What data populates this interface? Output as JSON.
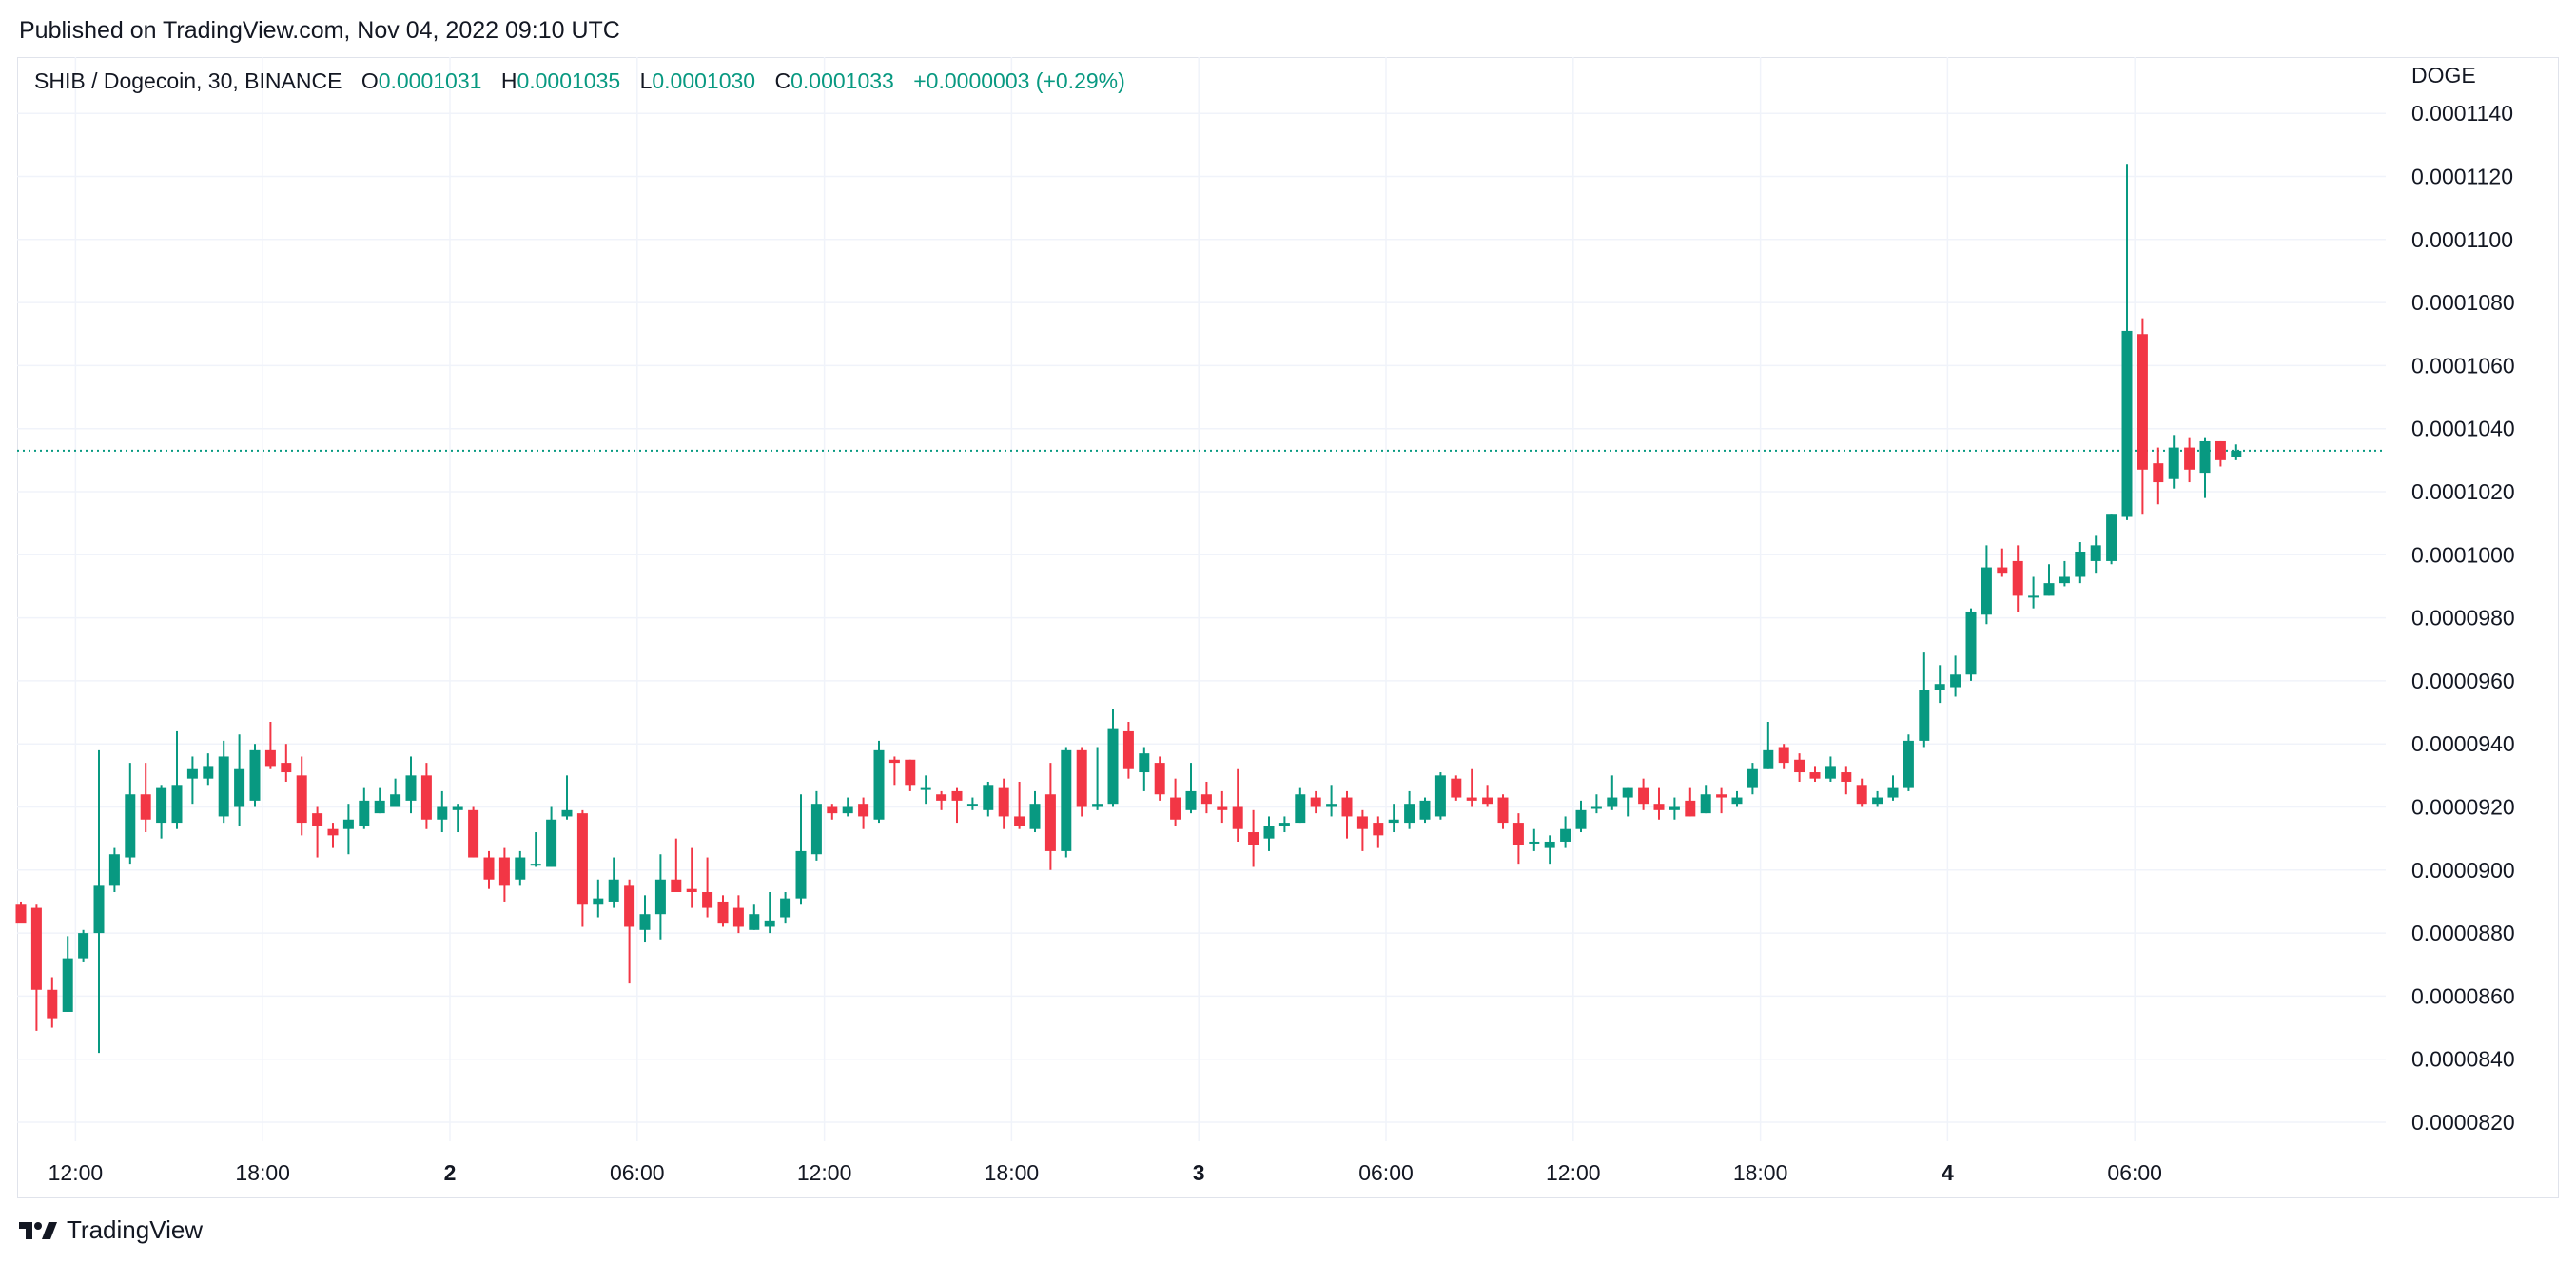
{
  "published": "Published on TradingView.com, Nov 04, 2022 09:10 UTC",
  "header": {
    "symbol": "SHIB / Dogecoin, 30, BINANCE",
    "o_label": "O",
    "o_value": "0.0001031",
    "h_label": "H",
    "h_value": "0.0001035",
    "l_label": "L",
    "l_value": "0.0001030",
    "c_label": "C",
    "c_value": "0.0001033",
    "change": "+0.0000003 (+0.29%)"
  },
  "currency": "DOGE",
  "brand": "TradingView",
  "colors": {
    "up": "#089981",
    "down": "#f23645",
    "grid": "#f0f3fa",
    "price_line": "#089981"
  },
  "chart_data": {
    "type": "candlestick",
    "title": "SHIB / Dogecoin, 30, BINANCE",
    "ylim": [
      8.14e-05,
      0.0001147
    ],
    "y_ticks": [
      "0.0001140",
      "0.0001120",
      "0.0001100",
      "0.0001080",
      "0.0001060",
      "0.0001040",
      "0.0001020",
      "0.0001000",
      "0.0000980",
      "0.0000960",
      "0.0000940",
      "0.0000920",
      "0.0000900",
      "0.0000880",
      "0.0000860",
      "0.0000840",
      "0.0000820"
    ],
    "x_ticks": [
      {
        "label": "12:00",
        "index": 3.5,
        "bold": false
      },
      {
        "label": "18:00",
        "index": 15.5,
        "bold": false
      },
      {
        "label": "2",
        "index": 27.5,
        "bold": true
      },
      {
        "label": "06:00",
        "index": 39.5,
        "bold": false
      },
      {
        "label": "12:00",
        "index": 51.5,
        "bold": false
      },
      {
        "label": "18:00",
        "index": 63.5,
        "bold": false
      },
      {
        "label": "3",
        "index": 75.5,
        "bold": true
      },
      {
        "label": "06:00",
        "index": 87.5,
        "bold": false
      },
      {
        "label": "12:00",
        "index": 99.5,
        "bold": false
      },
      {
        "label": "18:00",
        "index": 111.5,
        "bold": false
      },
      {
        "label": "4",
        "index": 123.5,
        "bold": true
      },
      {
        "label": "06:00",
        "index": 135.5,
        "bold": false
      }
    ],
    "last_price": 0.0001033,
    "candles": [
      {
        "o": 8.89e-05,
        "h": 8.9e-05,
        "l": 8.84e-05,
        "c": 8.83e-05
      },
      {
        "o": 8.88e-05,
        "h": 8.89e-05,
        "l": 8.49e-05,
        "c": 8.62e-05
      },
      {
        "o": 8.62e-05,
        "h": 8.66e-05,
        "l": 8.5e-05,
        "c": 8.53e-05
      },
      {
        "o": 8.55e-05,
        "h": 8.79e-05,
        "l": 8.55e-05,
        "c": 8.72e-05
      },
      {
        "o": 8.72e-05,
        "h": 8.81e-05,
        "l": 8.71e-05,
        "c": 8.8e-05
      },
      {
        "o": 8.8e-05,
        "h": 9.38e-05,
        "l": 8.42e-05,
        "c": 8.95e-05
      },
      {
        "o": 8.95e-05,
        "h": 9.07e-05,
        "l": 8.93e-05,
        "c": 9.05e-05
      },
      {
        "o": 9.04e-05,
        "h": 9.34e-05,
        "l": 9.02e-05,
        "c": 9.24e-05
      },
      {
        "o": 9.24e-05,
        "h": 9.34e-05,
        "l": 9.12e-05,
        "c": 9.16e-05
      },
      {
        "o": 9.15e-05,
        "h": 9.27e-05,
        "l": 9.1e-05,
        "c": 9.26e-05
      },
      {
        "o": 9.15e-05,
        "h": 9.44e-05,
        "l": 9.13e-05,
        "c": 9.27e-05
      },
      {
        "o": 9.29e-05,
        "h": 9.36e-05,
        "l": 9.21e-05,
        "c": 9.32e-05
      },
      {
        "o": 9.29e-05,
        "h": 9.37e-05,
        "l": 9.27e-05,
        "c": 9.33e-05
      },
      {
        "o": 9.17e-05,
        "h": 9.41e-05,
        "l": 9.15e-05,
        "c": 9.36e-05
      },
      {
        "o": 9.2e-05,
        "h": 9.43e-05,
        "l": 9.14e-05,
        "c": 9.32e-05
      },
      {
        "o": 9.22e-05,
        "h": 9.4e-05,
        "l": 9.2e-05,
        "c": 9.38e-05
      },
      {
        "o": 9.38e-05,
        "h": 9.47e-05,
        "l": 9.32e-05,
        "c": 9.33e-05
      },
      {
        "o": 9.34e-05,
        "h": 9.4e-05,
        "l": 9.28e-05,
        "c": 9.31e-05
      },
      {
        "o": 9.3e-05,
        "h": 9.36e-05,
        "l": 9.11e-05,
        "c": 9.15e-05
      },
      {
        "o": 9.18e-05,
        "h": 9.2e-05,
        "l": 9.04e-05,
        "c": 9.14e-05
      },
      {
        "o": 9.13e-05,
        "h": 9.15e-05,
        "l": 9.07e-05,
        "c": 9.11e-05
      },
      {
        "o": 9.13e-05,
        "h": 9.21e-05,
        "l": 9.05e-05,
        "c": 9.16e-05
      },
      {
        "o": 9.14e-05,
        "h": 9.26e-05,
        "l": 9.13e-05,
        "c": 9.22e-05
      },
      {
        "o": 9.18e-05,
        "h": 9.26e-05,
        "l": 9.18e-05,
        "c": 9.22e-05
      },
      {
        "o": 9.2e-05,
        "h": 9.29e-05,
        "l": 9.2e-05,
        "c": 9.24e-05
      },
      {
        "o": 9.22e-05,
        "h": 9.36e-05,
        "l": 9.18e-05,
        "c": 9.3e-05
      },
      {
        "o": 9.3e-05,
        "h": 9.34e-05,
        "l": 9.13e-05,
        "c": 9.16e-05
      },
      {
        "o": 9.16e-05,
        "h": 9.25e-05,
        "l": 9.12e-05,
        "c": 9.2e-05
      },
      {
        "o": 9.19e-05,
        "h": 9.21e-05,
        "l": 9.12e-05,
        "c": 9.2e-05
      },
      {
        "o": 9.19e-05,
        "h": 9.2e-05,
        "l": 9.04e-05,
        "c": 9.04e-05
      },
      {
        "o": 9.04e-05,
        "h": 9.06e-05,
        "l": 8.94e-05,
        "c": 8.97e-05
      },
      {
        "o": 9.04e-05,
        "h": 9.07e-05,
        "l": 8.9e-05,
        "c": 8.95e-05
      },
      {
        "o": 8.97e-05,
        "h": 9.06e-05,
        "l": 8.95e-05,
        "c": 9.04e-05
      },
      {
        "o": 9.02e-05,
        "h": 9.12e-05,
        "l": 9.01e-05,
        "c": 9.02e-05
      },
      {
        "o": 9.01e-05,
        "h": 9.2e-05,
        "l": 9.01e-05,
        "c": 9.16e-05
      },
      {
        "o": 9.17e-05,
        "h": 9.3e-05,
        "l": 9.16e-05,
        "c": 9.19e-05
      },
      {
        "o": 9.18e-05,
        "h": 9.19e-05,
        "l": 8.82e-05,
        "c": 8.89e-05
      },
      {
        "o": 8.89e-05,
        "h": 8.97e-05,
        "l": 8.85e-05,
        "c": 8.91e-05
      },
      {
        "o": 8.9e-05,
        "h": 9.04e-05,
        "l": 8.88e-05,
        "c": 8.97e-05
      },
      {
        "o": 8.95e-05,
        "h": 8.97e-05,
        "l": 8.64e-05,
        "c": 8.82e-05
      },
      {
        "o": 8.81e-05,
        "h": 8.92e-05,
        "l": 8.77e-05,
        "c": 8.86e-05
      },
      {
        "o": 8.86e-05,
        "h": 9.05e-05,
        "l": 8.78e-05,
        "c": 8.97e-05
      },
      {
        "o": 8.97e-05,
        "h": 9.1e-05,
        "l": 8.93e-05,
        "c": 8.93e-05
      },
      {
        "o": 8.94e-05,
        "h": 9.07e-05,
        "l": 8.88e-05,
        "c": 8.93e-05
      },
      {
        "o": 8.93e-05,
        "h": 9.04e-05,
        "l": 8.85e-05,
        "c": 8.88e-05
      },
      {
        "o": 8.9e-05,
        "h": 8.92e-05,
        "l": 8.82e-05,
        "c": 8.83e-05
      },
      {
        "o": 8.88e-05,
        "h": 8.92e-05,
        "l": 8.8e-05,
        "c": 8.82e-05
      },
      {
        "o": 8.81e-05,
        "h": 8.89e-05,
        "l": 8.81e-05,
        "c": 8.86e-05
      },
      {
        "o": 8.82e-05,
        "h": 8.93e-05,
        "l": 8.8e-05,
        "c": 8.84e-05
      },
      {
        "o": 8.85e-05,
        "h": 8.93e-05,
        "l": 8.83e-05,
        "c": 8.91e-05
      },
      {
        "o": 8.91e-05,
        "h": 9.24e-05,
        "l": 8.89e-05,
        "c": 9.06e-05
      },
      {
        "o": 9.05e-05,
        "h": 9.25e-05,
        "l": 9.03e-05,
        "c": 9.21e-05
      },
      {
        "o": 9.2e-05,
        "h": 9.21e-05,
        "l": 9.16e-05,
        "c": 9.18e-05
      },
      {
        "o": 9.18e-05,
        "h": 9.23e-05,
        "l": 9.17e-05,
        "c": 9.2e-05
      },
      {
        "o": 9.21e-05,
        "h": 9.23e-05,
        "l": 9.13e-05,
        "c": 9.17e-05
      },
      {
        "o": 9.16e-05,
        "h": 9.41e-05,
        "l": 9.15e-05,
        "c": 9.38e-05
      },
      {
        "o": 9.35e-05,
        "h": 9.36e-05,
        "l": 9.27e-05,
        "c": 9.34e-05
      },
      {
        "o": 9.35e-05,
        "h": 9.35e-05,
        "l": 9.25e-05,
        "c": 9.27e-05
      },
      {
        "o": 9.26e-05,
        "h": 9.3e-05,
        "l": 9.21e-05,
        "c": 9.26e-05
      },
      {
        "o": 9.24e-05,
        "h": 9.25e-05,
        "l": 9.19e-05,
        "c": 9.22e-05
      },
      {
        "o": 9.25e-05,
        "h": 9.26e-05,
        "l": 9.15e-05,
        "c": 9.22e-05
      },
      {
        "o": 9.21e-05,
        "h": 9.23e-05,
        "l": 9.19e-05,
        "c": 9.21e-05
      },
      {
        "o": 9.19e-05,
        "h": 9.28e-05,
        "l": 9.17e-05,
        "c": 9.27e-05
      },
      {
        "o": 9.26e-05,
        "h": 9.29e-05,
        "l": 9.13e-05,
        "c": 9.17e-05
      },
      {
        "o": 9.17e-05,
        "h": 9.28e-05,
        "l": 9.13e-05,
        "c": 9.14e-05
      },
      {
        "o": 9.13e-05,
        "h": 9.25e-05,
        "l": 9.12e-05,
        "c": 9.21e-05
      },
      {
        "o": 9.24e-05,
        "h": 9.34e-05,
        "l": 9e-05,
        "c": 9.06e-05
      },
      {
        "o": 9.06e-05,
        "h": 9.39e-05,
        "l": 9.04e-05,
        "c": 9.38e-05
      },
      {
        "o": 9.38e-05,
        "h": 9.39e-05,
        "l": 9.17e-05,
        "c": 9.2e-05
      },
      {
        "o": 9.2e-05,
        "h": 9.39e-05,
        "l": 9.19e-05,
        "c": 9.21e-05
      },
      {
        "o": 9.21e-05,
        "h": 9.51e-05,
        "l": 9.2e-05,
        "c": 9.45e-05
      },
      {
        "o": 9.44e-05,
        "h": 9.47e-05,
        "l": 9.29e-05,
        "c": 9.32e-05
      },
      {
        "o": 9.31e-05,
        "h": 9.39e-05,
        "l": 9.25e-05,
        "c": 9.37e-05
      },
      {
        "o": 9.34e-05,
        "h": 9.36e-05,
        "l": 9.22e-05,
        "c": 9.24e-05
      },
      {
        "o": 9.23e-05,
        "h": 9.29e-05,
        "l": 9.14e-05,
        "c": 9.16e-05
      },
      {
        "o": 9.19e-05,
        "h": 9.34e-05,
        "l": 9.18e-05,
        "c": 9.25e-05
      },
      {
        "o": 9.24e-05,
        "h": 9.28e-05,
        "l": 9.18e-05,
        "c": 9.21e-05
      },
      {
        "o": 9.2e-05,
        "h": 9.25e-05,
        "l": 9.15e-05,
        "c": 9.19e-05
      },
      {
        "o": 9.2e-05,
        "h": 9.32e-05,
        "l": 9.09e-05,
        "c": 9.13e-05
      },
      {
        "o": 9.12e-05,
        "h": 9.19e-05,
        "l": 9.01e-05,
        "c": 9.08e-05
      },
      {
        "o": 9.1e-05,
        "h": 9.17e-05,
        "l": 9.06e-05,
        "c": 9.14e-05
      },
      {
        "o": 9.14e-05,
        "h": 9.17e-05,
        "l": 9.12e-05,
        "c": 9.15e-05
      },
      {
        "o": 9.15e-05,
        "h": 9.26e-05,
        "l": 9.15e-05,
        "c": 9.24e-05
      },
      {
        "o": 9.23e-05,
        "h": 9.25e-05,
        "l": 9.18e-05,
        "c": 9.2e-05
      },
      {
        "o": 9.2e-05,
        "h": 9.27e-05,
        "l": 9.17e-05,
        "c": 9.21e-05
      },
      {
        "o": 9.23e-05,
        "h": 9.25e-05,
        "l": 9.1e-05,
        "c": 9.17e-05
      },
      {
        "o": 9.17e-05,
        "h": 9.19e-05,
        "l": 9.06e-05,
        "c": 9.13e-05
      },
      {
        "o": 9.15e-05,
        "h": 9.17e-05,
        "l": 9.07e-05,
        "c": 9.11e-05
      },
      {
        "o": 9.15e-05,
        "h": 9.21e-05,
        "l": 9.12e-05,
        "c": 9.16e-05
      },
      {
        "o": 9.15e-05,
        "h": 9.25e-05,
        "l": 9.13e-05,
        "c": 9.21e-05
      },
      {
        "o": 9.16e-05,
        "h": 9.23e-05,
        "l": 9.15e-05,
        "c": 9.22e-05
      },
      {
        "o": 9.17e-05,
        "h": 9.31e-05,
        "l": 9.16e-05,
        "c": 9.3e-05
      },
      {
        "o": 9.29e-05,
        "h": 9.3e-05,
        "l": 9.22e-05,
        "c": 9.23e-05
      },
      {
        "o": 9.23e-05,
        "h": 9.32e-05,
        "l": 9.2e-05,
        "c": 9.22e-05
      },
      {
        "o": 9.23e-05,
        "h": 9.27e-05,
        "l": 9.2e-05,
        "c": 9.21e-05
      },
      {
        "o": 9.23e-05,
        "h": 9.24e-05,
        "l": 9.13e-05,
        "c": 9.15e-05
      },
      {
        "o": 9.15e-05,
        "h": 9.18e-05,
        "l": 9.02e-05,
        "c": 9.08e-05
      },
      {
        "o": 9.09e-05,
        "h": 9.13e-05,
        "l": 9.06e-05,
        "c": 9.09e-05
      },
      {
        "o": 9.07e-05,
        "h": 9.11e-05,
        "l": 9.02e-05,
        "c": 9.09e-05
      },
      {
        "o": 9.09e-05,
        "h": 9.17e-05,
        "l": 9.07e-05,
        "c": 9.13e-05
      },
      {
        "o": 9.13e-05,
        "h": 9.22e-05,
        "l": 9.12e-05,
        "c": 9.19e-05
      },
      {
        "o": 9.2e-05,
        "h": 9.24e-05,
        "l": 9.18e-05,
        "c": 9.2e-05
      },
      {
        "o": 9.2e-05,
        "h": 9.3e-05,
        "l": 9.19e-05,
        "c": 9.23e-05
      },
      {
        "o": 9.23e-05,
        "h": 9.26e-05,
        "l": 9.17e-05,
        "c": 9.26e-05
      },
      {
        "o": 9.26e-05,
        "h": 9.29e-05,
        "l": 9.19e-05,
        "c": 9.21e-05
      },
      {
        "o": 9.21e-05,
        "h": 9.26e-05,
        "l": 9.16e-05,
        "c": 9.19e-05
      },
      {
        "o": 9.19e-05,
        "h": 9.23e-05,
        "l": 9.16e-05,
        "c": 9.2e-05
      },
      {
        "o": 9.22e-05,
        "h": 9.26e-05,
        "l": 9.17e-05,
        "c": 9.17e-05
      },
      {
        "o": 9.18e-05,
        "h": 9.27e-05,
        "l": 9.18e-05,
        "c": 9.24e-05
      },
      {
        "o": 9.24e-05,
        "h": 9.26e-05,
        "l": 9.18e-05,
        "c": 9.23e-05
      },
      {
        "o": 9.21e-05,
        "h": 9.25e-05,
        "l": 9.2e-05,
        "c": 9.23e-05
      },
      {
        "o": 9.26e-05,
        "h": 9.34e-05,
        "l": 9.24e-05,
        "c": 9.32e-05
      },
      {
        "o": 9.32e-05,
        "h": 9.47e-05,
        "l": 9.32e-05,
        "c": 9.38e-05
      },
      {
        "o": 9.39e-05,
        "h": 9.4e-05,
        "l": 9.32e-05,
        "c": 9.34e-05
      },
      {
        "o": 9.35e-05,
        "h": 9.37e-05,
        "l": 9.28e-05,
        "c": 9.31e-05
      },
      {
        "o": 9.31e-05,
        "h": 9.33e-05,
        "l": 9.28e-05,
        "c": 9.29e-05
      },
      {
        "o": 9.29e-05,
        "h": 9.36e-05,
        "l": 9.28e-05,
        "c": 9.33e-05
      },
      {
        "o": 9.31e-05,
        "h": 9.33e-05,
        "l": 9.24e-05,
        "c": 9.28e-05
      },
      {
        "o": 9.27e-05,
        "h": 9.29e-05,
        "l": 9.2e-05,
        "c": 9.21e-05
      },
      {
        "o": 9.21e-05,
        "h": 9.25e-05,
        "l": 9.2e-05,
        "c": 9.23e-05
      },
      {
        "o": 9.23e-05,
        "h": 9.3e-05,
        "l": 9.22e-05,
        "c": 9.26e-05
      },
      {
        "o": 9.26e-05,
        "h": 9.43e-05,
        "l": 9.25e-05,
        "c": 9.41e-05
      },
      {
        "o": 9.41e-05,
        "h": 9.69e-05,
        "l": 9.39e-05,
        "c": 9.57e-05
      },
      {
        "o": 9.57e-05,
        "h": 9.65e-05,
        "l": 9.53e-05,
        "c": 9.59e-05
      },
      {
        "o": 9.58e-05,
        "h": 9.68e-05,
        "l": 9.55e-05,
        "c": 9.62e-05
      },
      {
        "o": 9.62e-05,
        "h": 9.83e-05,
        "l": 9.6e-05,
        "c": 9.82e-05
      },
      {
        "o": 9.81e-05,
        "h": 0.0001003,
        "l": 9.78e-05,
        "c": 9.96e-05
      },
      {
        "o": 9.96e-05,
        "h": 0.0001002,
        "l": 9.93e-05,
        "c": 9.94e-05
      },
      {
        "o": 9.98e-05,
        "h": 0.0001003,
        "l": 9.82e-05,
        "c": 9.87e-05
      },
      {
        "o": 9.87e-05,
        "h": 9.93e-05,
        "l": 9.83e-05,
        "c": 9.87e-05
      },
      {
        "o": 9.87e-05,
        "h": 9.97e-05,
        "l": 9.87e-05,
        "c": 9.91e-05
      },
      {
        "o": 9.91e-05,
        "h": 9.98e-05,
        "l": 9.9e-05,
        "c": 9.93e-05
      },
      {
        "o": 9.93e-05,
        "h": 0.0001004,
        "l": 9.91e-05,
        "c": 0.0001001
      },
      {
        "o": 9.98e-05,
        "h": 0.0001006,
        "l": 9.94e-05,
        "c": 0.0001003
      },
      {
        "o": 9.98e-05,
        "h": 0.0001013,
        "l": 9.97e-05,
        "c": 0.0001013
      },
      {
        "o": 0.0001012,
        "h": 0.0001124,
        "l": 0.0001011,
        "c": 0.0001071
      },
      {
        "o": 0.000107,
        "h": 0.0001075,
        "l": 0.0001013,
        "c": 0.0001027
      },
      {
        "o": 0.0001029,
        "h": 0.0001034,
        "l": 0.0001016,
        "c": 0.0001023
      },
      {
        "o": 0.0001024,
        "h": 0.0001038,
        "l": 0.0001021,
        "c": 0.0001034
      },
      {
        "o": 0.0001034,
        "h": 0.0001037,
        "l": 0.0001023,
        "c": 0.0001027
      },
      {
        "o": 0.0001026,
        "h": 0.0001037,
        "l": 0.0001018,
        "c": 0.0001036
      },
      {
        "o": 0.0001036,
        "h": 0.0001036,
        "l": 0.0001028,
        "c": 0.000103
      },
      {
        "o": 0.0001031,
        "h": 0.0001035,
        "l": 0.000103,
        "c": 0.0001033
      }
    ]
  }
}
